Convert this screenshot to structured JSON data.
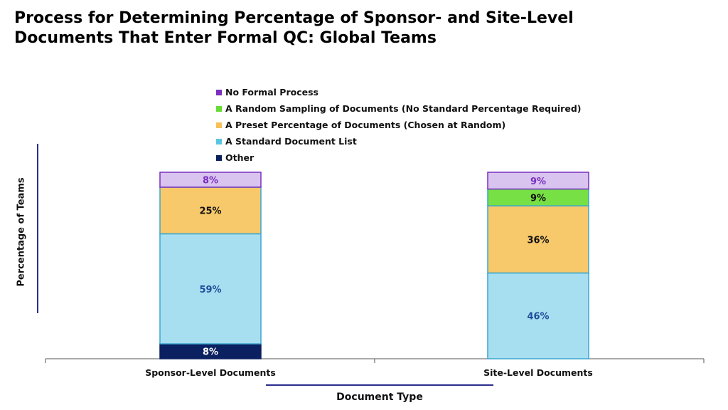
{
  "title": {
    "line1": "Process for Determining Percentage of Sponsor- and Site-Level",
    "line2": "Documents That Enter Formal QC: Global Teams"
  },
  "legend": [
    {
      "label": "No Formal Process",
      "color": "#7a2fbf"
    },
    {
      "label": "A Random Sampling of Documents (No Standard Percentage Required)",
      "color": "#66dd33"
    },
    {
      "label": "A Preset Percentage of Documents (Chosen at Random)",
      "color": "#f6c15a"
    },
    {
      "label": "A Standard Document List",
      "color": "#58c6e0"
    },
    {
      "label": "Other",
      "color": "#0b1f5c"
    }
  ],
  "axes": {
    "ylabel": "Percentage of Teams",
    "xlabel": "Document Type"
  },
  "chart_data": {
    "type": "bar",
    "stacked": true,
    "categories": [
      "Sponsor-Level Documents",
      "Site-Level Documents"
    ],
    "series": [
      {
        "name": "Other",
        "values": [
          8,
          0
        ],
        "labels": [
          "8%",
          ""
        ],
        "color": "#0b2060",
        "text_color": "#ffffff"
      },
      {
        "name": "A Standard Document List",
        "values": [
          59,
          46
        ],
        "labels": [
          "59%",
          "46%"
        ],
        "color": "#a8dff0",
        "text_color": "#1f4f9a"
      },
      {
        "name": "A Preset Percentage of Documents (Chosen at Random)",
        "values": [
          25,
          36
        ],
        "labels": [
          "25%",
          "36%"
        ],
        "color": "#f7c96a",
        "text_color": "#111111"
      },
      {
        "name": "A Random Sampling of Documents (No Standard Percentage Required)",
        "values": [
          0,
          9
        ],
        "labels": [
          "",
          "9%"
        ],
        "color": "#77e044",
        "text_color": "#111111"
      },
      {
        "name": "No Formal Process",
        "values": [
          8,
          9
        ],
        "labels": [
          "8%",
          "9%"
        ],
        "color": "#d9c3ef",
        "text_color": "#7a2fbf"
      }
    ],
    "ylim": [
      0,
      100
    ],
    "legend_position": "top-center",
    "grid": false
  }
}
